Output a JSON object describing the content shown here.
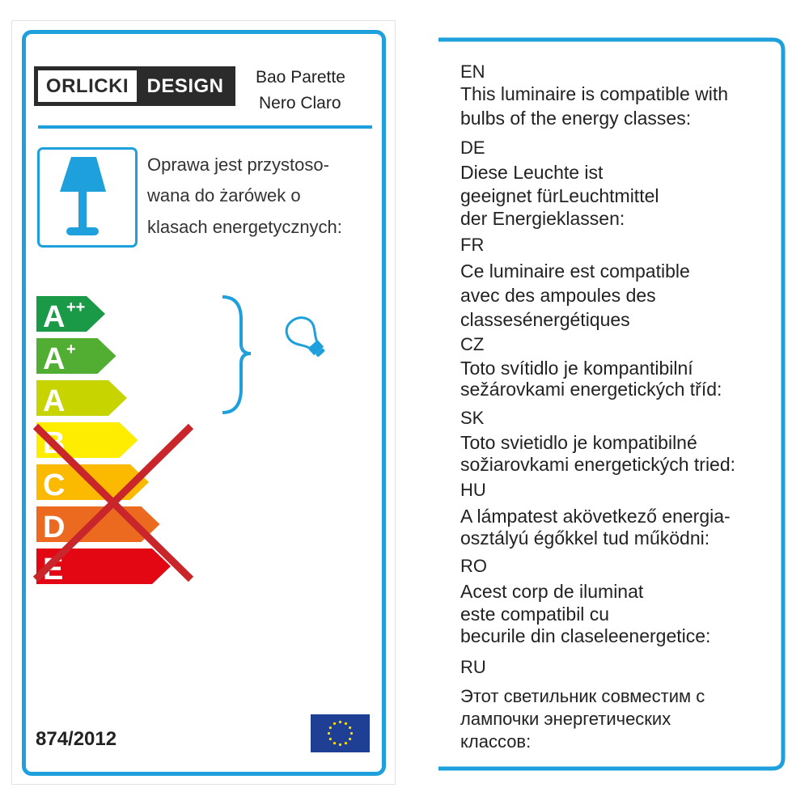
{
  "logo": {
    "left": "ORLICKI",
    "right": "DESIGN"
  },
  "product": {
    "line1": "Bao Parette",
    "line2": "Nero Claro"
  },
  "polish_text": [
    "Oprawa jest przystoso-",
    "wana do żarówek o",
    "klasach energetycznych:"
  ],
  "energy_classes": [
    {
      "label": "A",
      "sup": "++",
      "color": "#1a9a47",
      "compatible": true
    },
    {
      "label": "A",
      "sup": "+",
      "color": "#52ae32",
      "compatible": true
    },
    {
      "label": "A",
      "sup": "",
      "color": "#c8d400",
      "compatible": true
    },
    {
      "label": "B",
      "sup": "",
      "color": "#ffed00",
      "compatible": false
    },
    {
      "label": "C",
      "sup": "",
      "color": "#fbba00",
      "compatible": false
    },
    {
      "label": "D",
      "sup": "",
      "color": "#eb6a1f",
      "compatible": false
    },
    {
      "label": "E",
      "sup": "",
      "color": "#e30613",
      "compatible": false
    }
  ],
  "regulation": "874/2012",
  "colors": {
    "accent": "#1ea0dc",
    "cross": "#c8262b",
    "eu_blue": "#1f3f94",
    "eu_star": "#ffdd00"
  },
  "icons": [
    "lamp-icon",
    "bulb-icon",
    "bracket-icon",
    "eu-flag-icon",
    "cross-out-icon"
  ],
  "languages": [
    {
      "code": "EN",
      "lines": [
        "This luminaire is compatible with",
        "bulbs of the energy classes:"
      ]
    },
    {
      "code": "DE",
      "lines": [
        "Diese Leuchte ist",
        "geeignet fürLeuchtmittel",
        "der Energieklassen:"
      ]
    },
    {
      "code": "FR",
      "lines": [
        "Ce luminaire est compatible",
        "avec des ampoules des",
        "classesénergétiques"
      ]
    },
    {
      "code": "CZ",
      "lines": [
        "Toto svítidlo je kompantibilní",
        "sežárovkami energetických tříd:"
      ]
    },
    {
      "code": "SK",
      "lines": [
        "Toto svietidlo je kompatibilné",
        "sožiarovkami energetických tried:"
      ]
    },
    {
      "code": "HU",
      "lines": [
        "A lámpatest akövetkező energia-",
        "osztályú égőkkel tud működni:"
      ]
    },
    {
      "code": "RO",
      "lines": [
        "Acest corp de iluminat",
        "este compatibil cu",
        "becurile din claseleenergetice:"
      ]
    },
    {
      "code": "RU",
      "lines": [
        "Этот светильник совместим с",
        "лампочки энергетических",
        "классов:"
      ]
    }
  ]
}
